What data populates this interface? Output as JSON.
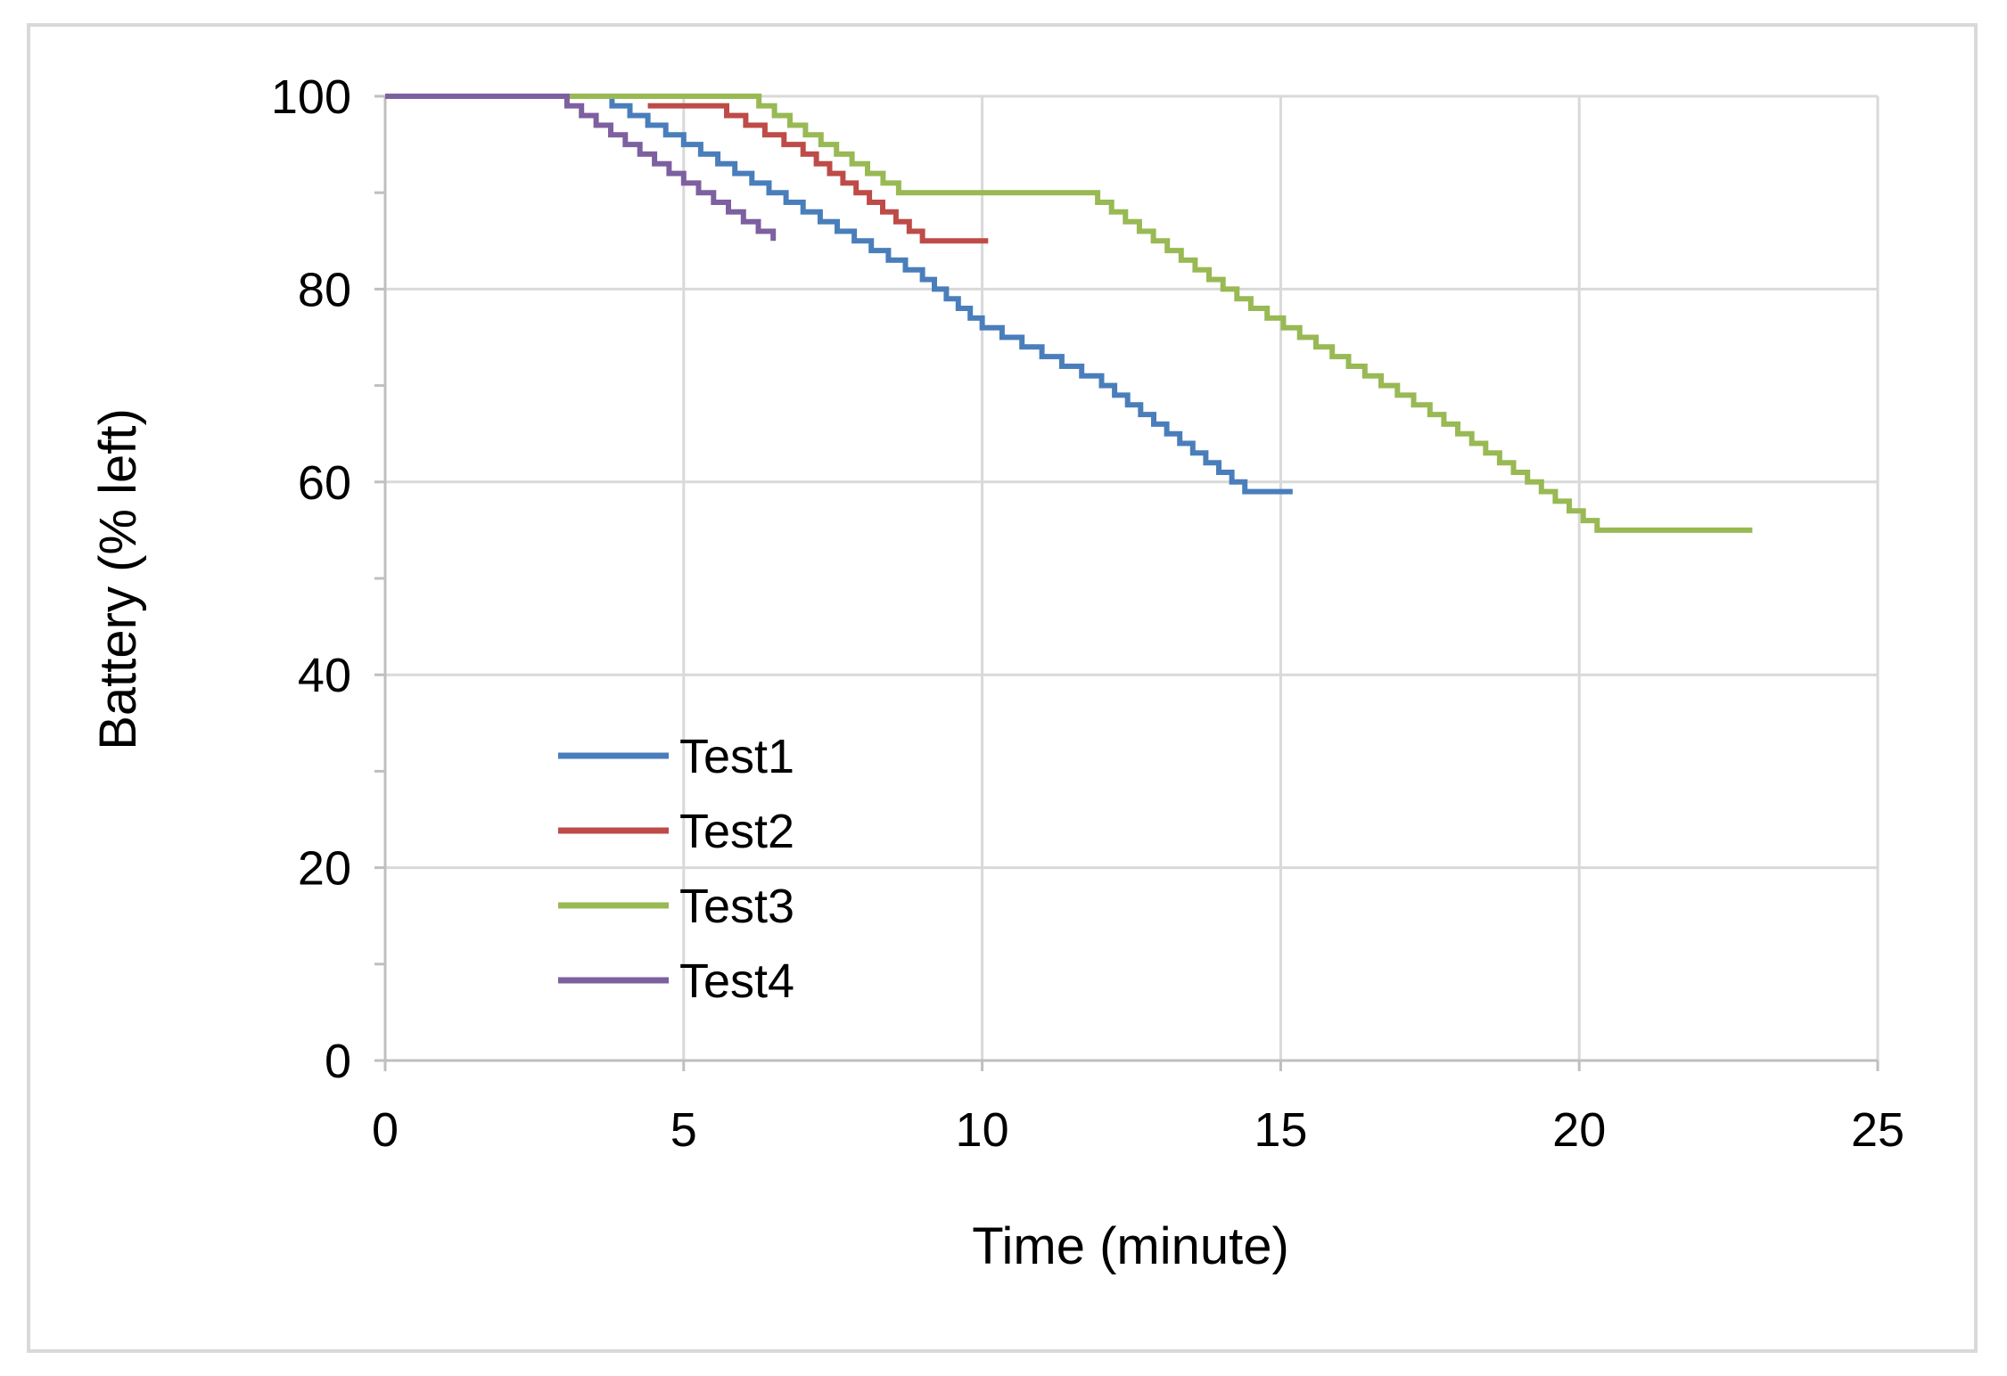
{
  "chart_data": {
    "type": "line",
    "xlabel": "Time (minute)",
    "ylabel": "Battery (% left)",
    "xlim": [
      0,
      25
    ],
    "ylim": [
      0,
      100
    ],
    "xticks": [
      0,
      5,
      10,
      15,
      20,
      25
    ],
    "yticks": [
      0,
      20,
      40,
      60,
      80,
      100
    ],
    "y_minor_step": 10,
    "grid": true,
    "legend_position": "lower-left, inside plot",
    "step_style": true,
    "series": [
      {
        "name": "Test1",
        "color": "#4a7ebb",
        "points": [
          [
            0,
            100
          ],
          [
            3.5,
            100
          ],
          [
            5,
            95
          ],
          [
            7,
            88
          ],
          [
            9,
            81
          ],
          [
            10,
            76
          ],
          [
            12,
            70
          ],
          [
            14.4,
            59
          ],
          [
            15.2,
            59
          ]
        ]
      },
      {
        "name": "Test2",
        "color": "#be4b48",
        "points": [
          [
            4.4,
            99
          ],
          [
            5.4,
            99
          ],
          [
            7,
            94
          ],
          [
            9,
            85
          ],
          [
            10.1,
            85
          ]
        ]
      },
      {
        "name": "Test3",
        "color": "#98b954",
        "points": [
          [
            0,
            100
          ],
          [
            6,
            100
          ],
          [
            8.6,
            90
          ],
          [
            11.7,
            90
          ],
          [
            14.5,
            78
          ],
          [
            17.5,
            67
          ],
          [
            20.3,
            55
          ],
          [
            22.9,
            55
          ]
        ]
      },
      {
        "name": "Test4",
        "color": "#7d60a0",
        "points": [
          [
            0,
            100
          ],
          [
            2.8,
            100
          ],
          [
            5,
            91
          ],
          [
            6.5,
            85
          ]
        ]
      }
    ]
  }
}
